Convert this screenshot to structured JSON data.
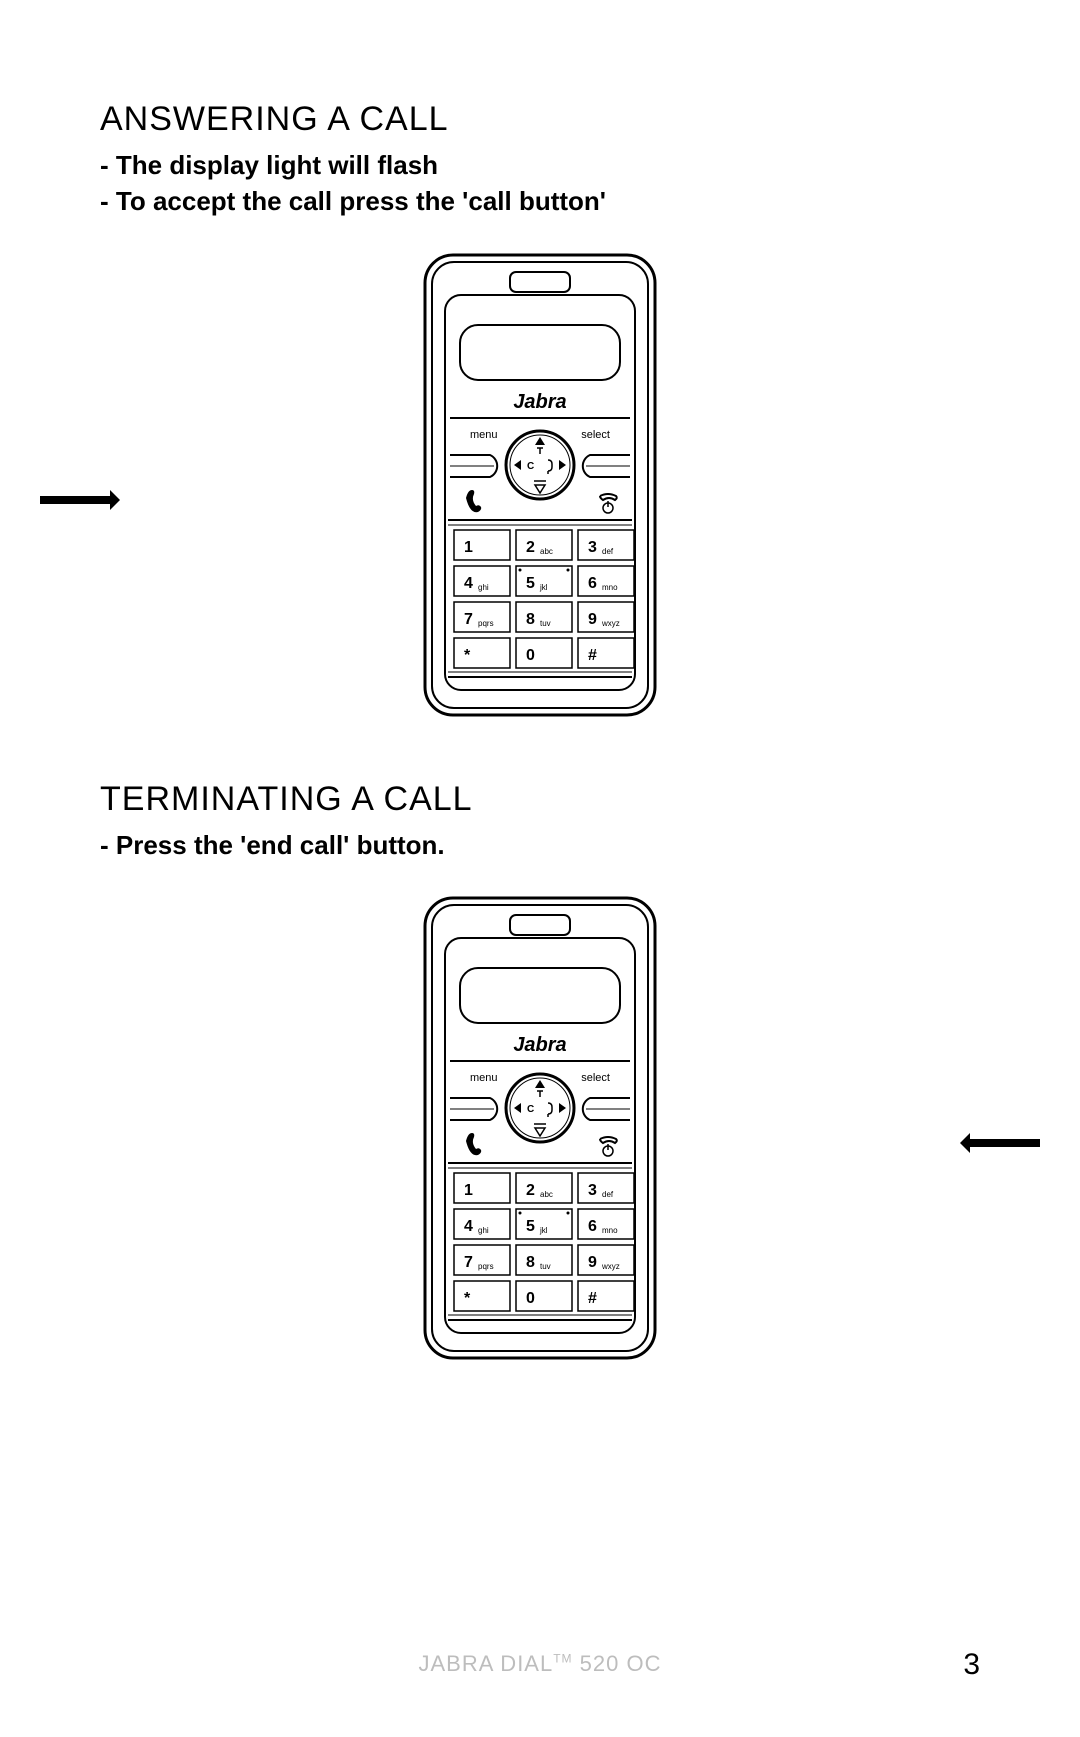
{
  "section1": {
    "heading": "ANSWERING A CALL",
    "line1": "- The display light will flash",
    "line2": "- To accept the call press the 'call button'"
  },
  "section2": {
    "heading": "TERMINATING A CALL",
    "line1": "- Press the 'end call' button."
  },
  "phone": {
    "brand": "Jabra",
    "menu_label": "menu",
    "select_label": "select",
    "nav_c": "C",
    "keypad": [
      {
        "num": "1",
        "sub": ""
      },
      {
        "num": "2",
        "sub": "abc"
      },
      {
        "num": "3",
        "sub": "def"
      },
      {
        "num": "4",
        "sub": "ghi"
      },
      {
        "num": "5",
        "sub": "jkl"
      },
      {
        "num": "6",
        "sub": "mno"
      },
      {
        "num": "7",
        "sub": "pqrs"
      },
      {
        "num": "8",
        "sub": "tuv"
      },
      {
        "num": "9",
        "sub": "wxyz"
      },
      {
        "num": "*",
        "sub": ""
      },
      {
        "num": "0",
        "sub": ""
      },
      {
        "num": "#",
        "sub": ""
      }
    ]
  },
  "footer": {
    "product": "JABRA DIAL",
    "tm": "TM",
    "model": " 520 OC",
    "page_number": "3"
  },
  "style": {
    "line_color": "#000000",
    "bg": "#ffffff",
    "footer_color": "#bdbdbd",
    "heading_fontsize": 34,
    "body_fontsize": 26
  }
}
